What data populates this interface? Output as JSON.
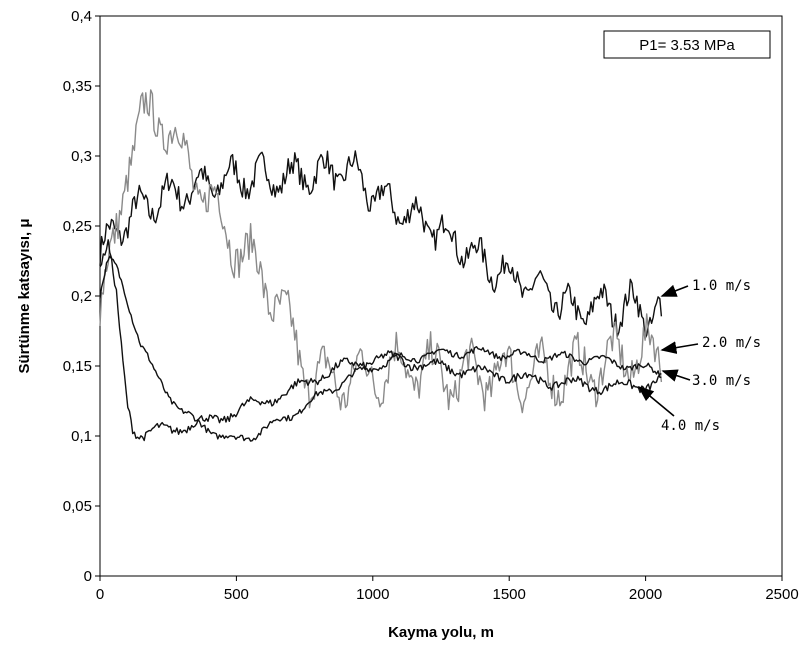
{
  "chart_data": {
    "type": "line",
    "xlabel": "Kayma yolu, m",
    "ylabel": "Sürtünme katsayısı, μ",
    "xlim": [
      0,
      2500
    ],
    "ylim": [
      0,
      0.4
    ],
    "x_ticks": [
      "0",
      "500",
      "1000",
      "1500",
      "2000",
      "2500"
    ],
    "y_ticks": [
      "0",
      "0,05",
      "0,1",
      "0,15",
      "0,2",
      "0,25",
      "0,3",
      "0,35",
      "0,4"
    ],
    "grid": false,
    "legend": {
      "text": "P1= 3.53 MPa",
      "position": "top-right"
    },
    "series": [
      {
        "name": "1.0 m/s",
        "color": "#111111",
        "noise": 0.012,
        "x": [
          0,
          50,
          100,
          150,
          200,
          250,
          300,
          400,
          500,
          600,
          700,
          800,
          900,
          950,
          1000,
          1100,
          1200,
          1300,
          1400,
          1500,
          1600,
          1700,
          1750,
          1800,
          1900,
          1950,
          2000,
          2050,
          2060
        ],
        "y": [
          0.23,
          0.245,
          0.255,
          0.262,
          0.268,
          0.272,
          0.275,
          0.28,
          0.285,
          0.285,
          0.285,
          0.288,
          0.29,
          0.285,
          0.272,
          0.262,
          0.252,
          0.24,
          0.225,
          0.215,
          0.205,
          0.195,
          0.185,
          0.195,
          0.19,
          0.195,
          0.185,
          0.19,
          0.18
        ]
      },
      {
        "name": "2.0 m/s",
        "color": "#8a8a8a",
        "noise": 0.018,
        "x": [
          0,
          50,
          100,
          150,
          200,
          250,
          300,
          350,
          400,
          450,
          500,
          550,
          600,
          650,
          700,
          750,
          800,
          900,
          1000,
          1100,
          1200,
          1300,
          1400,
          1500,
          1600,
          1700,
          1800,
          1900,
          2000,
          2060
        ],
        "y": [
          0.19,
          0.23,
          0.3,
          0.32,
          0.33,
          0.325,
          0.3,
          0.285,
          0.27,
          0.25,
          0.24,
          0.225,
          0.21,
          0.2,
          0.17,
          0.15,
          0.14,
          0.14,
          0.145,
          0.15,
          0.148,
          0.14,
          0.145,
          0.145,
          0.142,
          0.145,
          0.148,
          0.155,
          0.16,
          0.155
        ]
      },
      {
        "name": "3.0 m/s",
        "color": "#111111",
        "noise": 0.003,
        "x": [
          0,
          30,
          60,
          90,
          120,
          150,
          200,
          250,
          300,
          350,
          400,
          450,
          500,
          550,
          600,
          700,
          800,
          900,
          1000,
          1100,
          1200,
          1300,
          1400,
          1500,
          1600,
          1700,
          1800,
          1900,
          2000,
          2060
        ],
        "y": [
          0.2,
          0.225,
          0.22,
          0.205,
          0.185,
          0.165,
          0.145,
          0.13,
          0.118,
          0.11,
          0.105,
          0.1,
          0.097,
          0.1,
          0.105,
          0.115,
          0.128,
          0.14,
          0.15,
          0.155,
          0.158,
          0.16,
          0.16,
          0.158,
          0.157,
          0.156,
          0.155,
          0.152,
          0.148,
          0.145
        ]
      },
      {
        "name": "4.0 m/s",
        "color": "#111111",
        "noise": 0.004,
        "x": [
          0,
          30,
          60,
          80,
          100,
          120,
          140,
          170,
          200,
          250,
          300,
          400,
          500,
          600,
          700,
          800,
          900,
          1000,
          1100,
          1200,
          1300,
          1400,
          1500,
          1600,
          1700,
          1800,
          1900,
          2000,
          2060
        ],
        "y": [
          0.22,
          0.235,
          0.2,
          0.16,
          0.125,
          0.108,
          0.102,
          0.1,
          0.103,
          0.105,
          0.107,
          0.11,
          0.118,
          0.125,
          0.132,
          0.143,
          0.15,
          0.155,
          0.155,
          0.15,
          0.148,
          0.145,
          0.143,
          0.14,
          0.138,
          0.136,
          0.135,
          0.137,
          0.14
        ]
      }
    ],
    "annotations": [
      {
        "series": "1.0 m/s",
        "text": "1.0 m/s"
      },
      {
        "series": "2.0 m/s",
        "text": "2.0 m/s"
      },
      {
        "series": "3.0 m/s",
        "text": "3.0 m/s"
      },
      {
        "series": "4.0 m/s",
        "text": "4.0 m/s"
      }
    ]
  }
}
